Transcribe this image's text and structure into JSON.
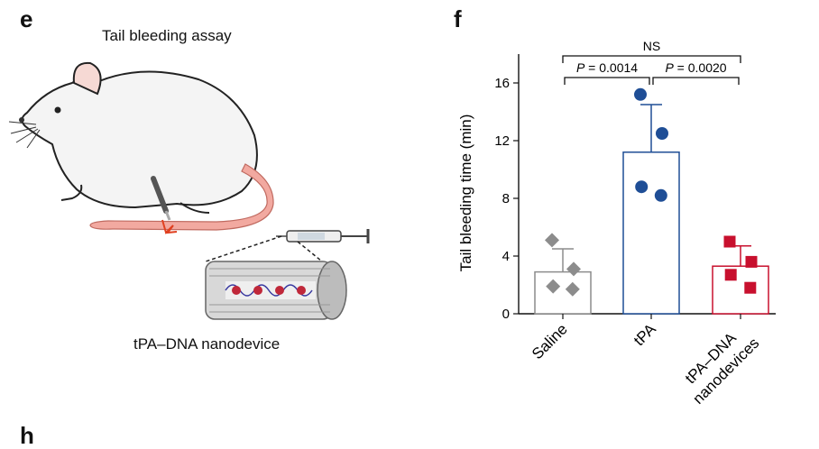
{
  "panels": {
    "e": {
      "letter": "e",
      "title": "Tail bleeding assay",
      "caption": "tPA–DNA nanodevice"
    },
    "f": {
      "letter": "f"
    },
    "h": {
      "letter": "h"
    }
  },
  "colors": {
    "saline": "#8c8c8c",
    "tpa": "#1f4e96",
    "nanodevice": "#c8102e",
    "tail": "#f2a9a0"
  },
  "chart_data": {
    "type": "bar",
    "ylabel": "Tail bleeding time (min)",
    "ylim": [
      0,
      18
    ],
    "yticks": [
      0,
      4,
      8,
      12,
      16
    ],
    "categories": [
      "Saline",
      "tPA",
      "tPA–DNA\nnanodevices"
    ],
    "bars": [
      {
        "category": "Saline",
        "mean": 2.9,
        "error": 1.6,
        "points": [
          5.1,
          3.1,
          1.9,
          1.7
        ],
        "marker": "diamond"
      },
      {
        "category": "tPA",
        "mean": 11.2,
        "error": 3.3,
        "points": [
          15.2,
          12.5,
          8.8,
          8.2
        ],
        "marker": "circle"
      },
      {
        "category": "tPA–DNA\nnanodevices",
        "mean": 3.3,
        "error": 1.4,
        "points": [
          5.0,
          3.6,
          2.7,
          1.8
        ],
        "marker": "square"
      }
    ],
    "annotations": [
      {
        "from": 0,
        "to": 1,
        "label": "P = 0.0014"
      },
      {
        "from": 1,
        "to": 2,
        "label": "P = 0.0020"
      },
      {
        "from": 0,
        "to": 2,
        "label": "NS"
      }
    ]
  }
}
